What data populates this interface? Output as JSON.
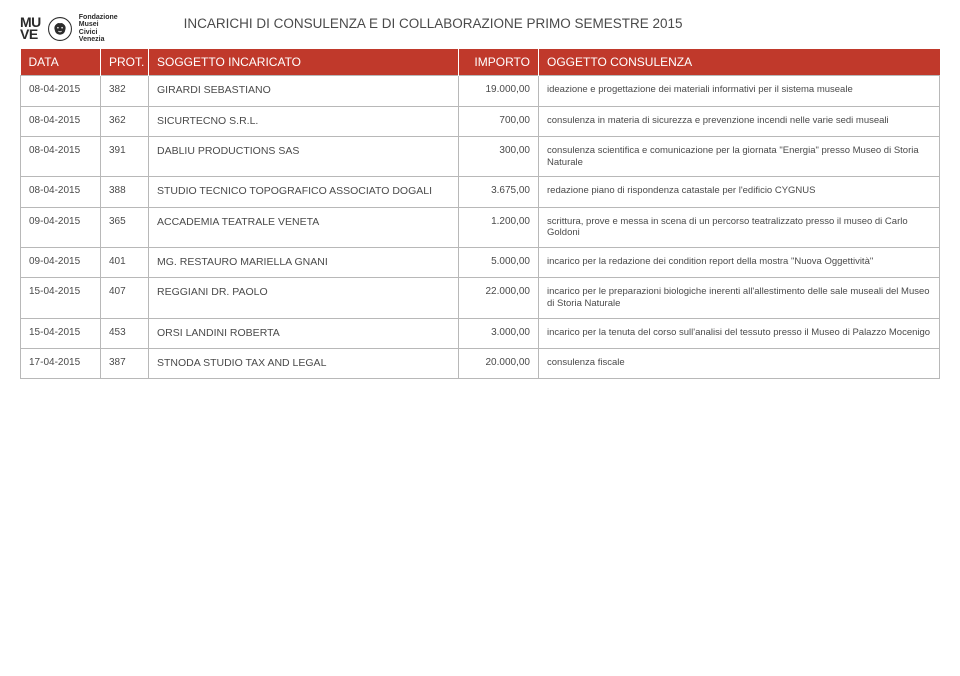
{
  "logo": {
    "line1": "MU",
    "line2": "VE",
    "brand_line1": "Fondazione",
    "brand_line2": "Musei",
    "brand_line3": "Civici",
    "brand_line4": "Venezia"
  },
  "page_title": "INCARICHI DI CONSULENZA E DI COLLABORAZIONE PRIMO SEMESTRE 2015",
  "header_bg": "#c0392b",
  "header_text_color": "#ffffff",
  "border_color": "#b8b8b8",
  "columns": {
    "data": "DATA",
    "prot": "PROT.",
    "soggetto": "SOGGETTO INCARICATO",
    "importo": "IMPORTO",
    "oggetto": "OGGETTO CONSULENZA"
  },
  "rows": [
    {
      "data": "08-04-2015",
      "prot": "382",
      "soggetto": "GIRARDI SEBASTIANO",
      "importo": "19.000,00",
      "oggetto": "ideazione e progettazione dei materiali informativi per il sistema museale"
    },
    {
      "data": "08-04-2015",
      "prot": "362",
      "soggetto": "SICURTECNO S.R.L.",
      "importo": "700,00",
      "oggetto": "consulenza in materia di sicurezza e prevenzione incendi nelle varie sedi museali"
    },
    {
      "data": "08-04-2015",
      "prot": "391",
      "soggetto": "DABLIU PRODUCTIONS SAS",
      "importo": "300,00",
      "oggetto": "consulenza scientifica e comunicazione per la giornata \"Energia\" presso Museo di Storia Naturale"
    },
    {
      "data": "08-04-2015",
      "prot": "388",
      "soggetto": "STUDIO TECNICO TOPOGRAFICO ASSOCIATO DOGALI",
      "importo": "3.675,00",
      "oggetto": "redazione piano di rispondenza catastale per l'edificio CYGNUS"
    },
    {
      "data": "09-04-2015",
      "prot": "365",
      "soggetto": "ACCADEMIA TEATRALE VENETA",
      "importo": "1.200,00",
      "oggetto": "scrittura, prove e messa in scena di un percorso teatralizzato presso il museo di Carlo Goldoni"
    },
    {
      "data": "09-04-2015",
      "prot": "401",
      "soggetto": "MG. RESTAURO MARIELLA  GNANI",
      "importo": "5.000,00",
      "oggetto": "incarico per la redazione dei condition report della mostra \"Nuova Oggettività\""
    },
    {
      "data": "15-04-2015",
      "prot": "407",
      "soggetto": "REGGIANI DR. PAOLO",
      "importo": "22.000,00",
      "oggetto": "incarico  per le preparazioni biologiche inerenti all'allestimento delle sale museali del Museo di Storia Naturale"
    },
    {
      "data": "15-04-2015",
      "prot": "453",
      "soggetto": "ORSI LANDINI ROBERTA",
      "importo": "3.000,00",
      "oggetto": "incarico per la tenuta del corso sull'analisi del tessuto presso il Museo di Palazzo Mocenigo"
    },
    {
      "data": "17-04-2015",
      "prot": "387",
      "soggetto": "STNODA STUDIO TAX AND LEGAL",
      "importo": "20.000,00",
      "oggetto": "consulenza fiscale"
    }
  ]
}
